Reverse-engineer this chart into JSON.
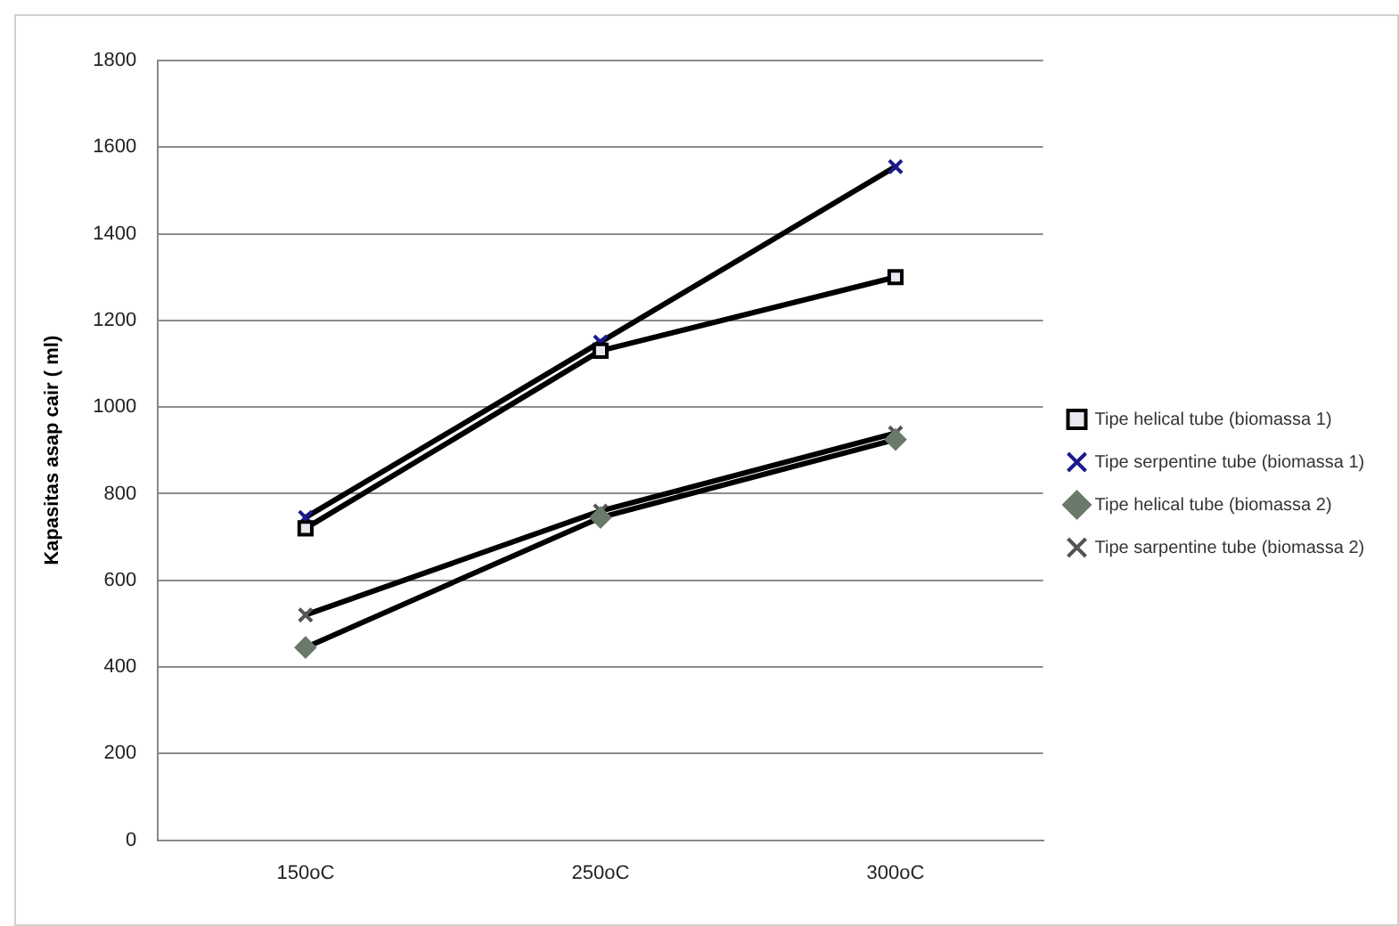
{
  "chart_data": {
    "type": "line",
    "ylabel": "Kapasitas asap cair ( ml)",
    "categories": [
      "150oC",
      "250oC",
      "300oC"
    ],
    "series": [
      {
        "name": "Tipe helical tube (biomassa 1)",
        "color": "#000000",
        "marker": "square",
        "values": [
          720,
          1130,
          1300
        ]
      },
      {
        "name": "Tipe serpentine tube (biomassa 1)",
        "color": "#1a1a8c",
        "marker": "cross",
        "values": [
          745,
          1150,
          1555
        ]
      },
      {
        "name": "Tipe helical tube (biomassa 2)",
        "color": "#6a7a6a",
        "marker": "diamond",
        "values": [
          445,
          745,
          925
        ]
      },
      {
        "name": "Tipe sarpentine tube (biomassa 2)",
        "color": "#555555",
        "marker": "cross",
        "values": [
          520,
          760,
          940
        ]
      }
    ],
    "ylim": [
      0,
      1800
    ],
    "yticks": [
      0,
      200,
      400,
      600,
      800,
      1000,
      1200,
      1400,
      1600,
      1800
    ],
    "grid": "y",
    "legend": "right",
    "line_style": "solid"
  }
}
